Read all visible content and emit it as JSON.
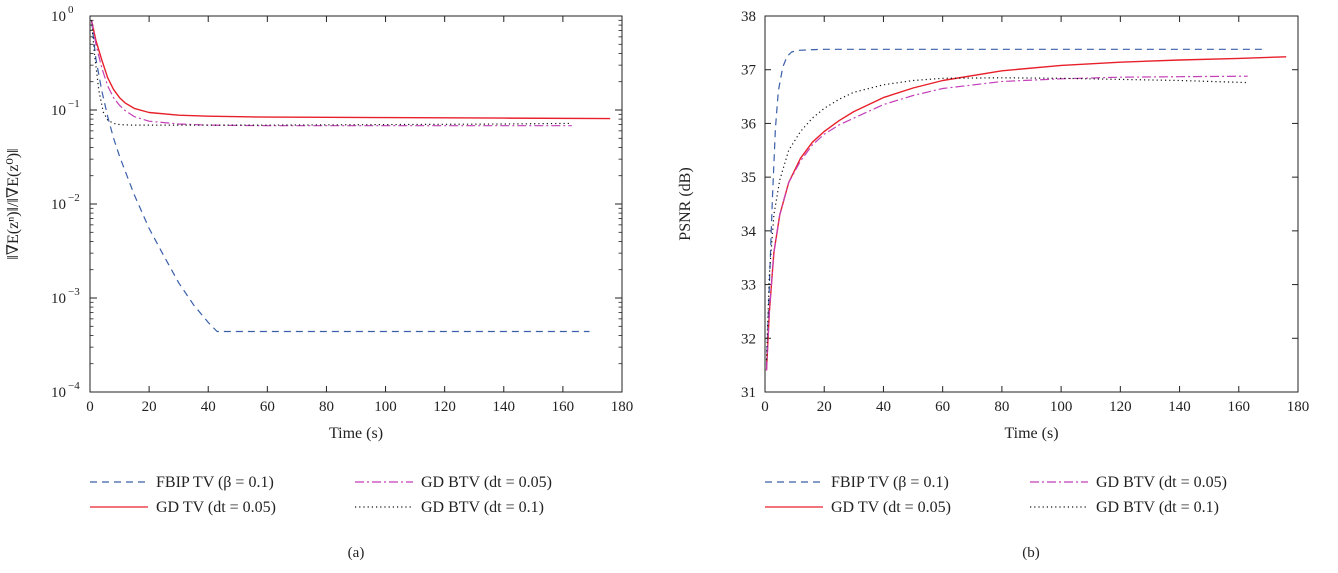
{
  "chart_data": [
    {
      "type": "line",
      "caption": "(a)",
      "xlabel": "Time (s)",
      "ylabel": "‖∇E(zⁿ)‖/‖∇E(z⁰)‖",
      "xlim": [
        0,
        180
      ],
      "ylim": [
        0.0001,
        1
      ],
      "yscale": "log",
      "xticks": [
        0,
        20,
        40,
        60,
        80,
        100,
        120,
        140,
        160,
        180
      ],
      "yticks": [
        {
          "value": 1,
          "base": "10",
          "exp": "0"
        },
        {
          "value": 0.1,
          "base": "10",
          "exp": "−1"
        },
        {
          "value": 0.01,
          "base": "10",
          "exp": "−2"
        },
        {
          "value": 0.001,
          "base": "10",
          "exp": "−3"
        },
        {
          "value": 0.0001,
          "base": "10",
          "exp": "−4"
        }
      ],
      "grid": false,
      "legend_position": "bottom",
      "series": [
        {
          "name": "FBIP TV (β = 0.1)",
          "color": "#3a5fa8",
          "style": "dashed",
          "x": [
            0.5,
            2,
            4,
            6,
            8,
            10,
            15,
            20,
            25,
            30,
            35,
            40,
            43,
            60,
            100,
            140,
            169
          ],
          "y": [
            0.9,
            0.35,
            0.16,
            0.085,
            0.05,
            0.032,
            0.0125,
            0.0055,
            0.0028,
            0.00145,
            0.00085,
            0.00055,
            0.00044,
            0.00044,
            0.00044,
            0.00044,
            0.00044
          ]
        },
        {
          "name": "GD TV (dt = 0.05)",
          "color": "#e8202a",
          "style": "solid",
          "x": [
            0.5,
            2,
            4,
            6,
            8,
            10,
            12,
            15,
            20,
            30,
            40,
            60,
            100,
            140,
            176
          ],
          "y": [
            0.9,
            0.55,
            0.34,
            0.22,
            0.165,
            0.135,
            0.118,
            0.104,
            0.094,
            0.088,
            0.086,
            0.084,
            0.083,
            0.082,
            0.081
          ]
        },
        {
          "name": "GD BTV (dt = 0.05)",
          "color": "#c43fb8",
          "style": "dashdot",
          "x": [
            0.5,
            2,
            4,
            6,
            8,
            10,
            12,
            15,
            20,
            30,
            40,
            60,
            100,
            140,
            163
          ],
          "y": [
            0.9,
            0.5,
            0.28,
            0.18,
            0.135,
            0.112,
            0.098,
            0.085,
            0.076,
            0.071,
            0.069,
            0.068,
            0.068,
            0.068,
            0.068
          ]
        },
        {
          "name": "GD BTV (dt = 0.1)",
          "color": "#111111",
          "style": "dotted",
          "x": [
            0.5,
            1.5,
            3,
            4.5,
            6,
            8,
            10,
            14,
            20,
            30,
            60,
            100,
            140,
            163
          ],
          "y": [
            0.9,
            0.4,
            0.16,
            0.095,
            0.078,
            0.072,
            0.07,
            0.069,
            0.069,
            0.069,
            0.069,
            0.07,
            0.071,
            0.072
          ]
        }
      ]
    },
    {
      "type": "line",
      "caption": "(b)",
      "xlabel": "Time (s)",
      "ylabel": "PSNR (dB)",
      "xlim": [
        0,
        180
      ],
      "ylim": [
        31,
        38
      ],
      "xticks": [
        0,
        20,
        40,
        60,
        80,
        100,
        120,
        140,
        160,
        180
      ],
      "yticks": [
        31,
        32,
        33,
        34,
        35,
        36,
        37,
        38
      ],
      "grid": false,
      "legend_position": "bottom",
      "series": [
        {
          "name": "FBIP TV (β = 0.1)",
          "color": "#3a5fa8",
          "style": "dashed",
          "x": [
            0.5,
            1.5,
            2.5,
            3.5,
            4.5,
            6,
            7.5,
            9,
            11,
            15,
            20,
            40,
            80,
            120,
            168
          ],
          "y": [
            31.5,
            33.0,
            34.6,
            35.9,
            36.6,
            37.05,
            37.25,
            37.33,
            37.36,
            37.37,
            37.38,
            37.38,
            37.38,
            37.38,
            37.38
          ]
        },
        {
          "name": "GD TV (dt = 0.05)",
          "color": "#e8202a",
          "style": "solid",
          "x": [
            0.5,
            1.5,
            3,
            5,
            8,
            12,
            16,
            20,
            25,
            30,
            40,
            50,
            60,
            80,
            100,
            120,
            140,
            160,
            176
          ],
          "y": [
            31.4,
            32.5,
            33.6,
            34.3,
            34.9,
            35.35,
            35.65,
            35.85,
            36.05,
            36.22,
            36.48,
            36.66,
            36.8,
            36.98,
            37.08,
            37.14,
            37.18,
            37.21,
            37.24
          ]
        },
        {
          "name": "GD BTV (dt = 0.05)",
          "color": "#c43fb8",
          "style": "dashdot",
          "x": [
            0.5,
            1.5,
            3,
            5,
            8,
            12,
            16,
            20,
            25,
            30,
            40,
            50,
            60,
            80,
            100,
            120,
            140,
            163
          ],
          "y": [
            31.4,
            32.5,
            33.6,
            34.3,
            34.9,
            35.3,
            35.6,
            35.8,
            35.97,
            36.1,
            36.35,
            36.52,
            36.65,
            36.78,
            36.83,
            36.86,
            36.87,
            36.88
          ]
        },
        {
          "name": "GD BTV (dt = 0.1)",
          "color": "#111111",
          "style": "dotted",
          "x": [
            0.5,
            1.5,
            3,
            5,
            8,
            12,
            16,
            20,
            25,
            30,
            40,
            50,
            60,
            80,
            100,
            120,
            140,
            163
          ],
          "y": [
            31.6,
            33.2,
            34.3,
            34.95,
            35.5,
            35.85,
            36.1,
            36.28,
            36.45,
            36.58,
            36.72,
            36.8,
            36.84,
            36.85,
            36.84,
            36.82,
            36.8,
            36.76
          ]
        }
      ]
    }
  ]
}
